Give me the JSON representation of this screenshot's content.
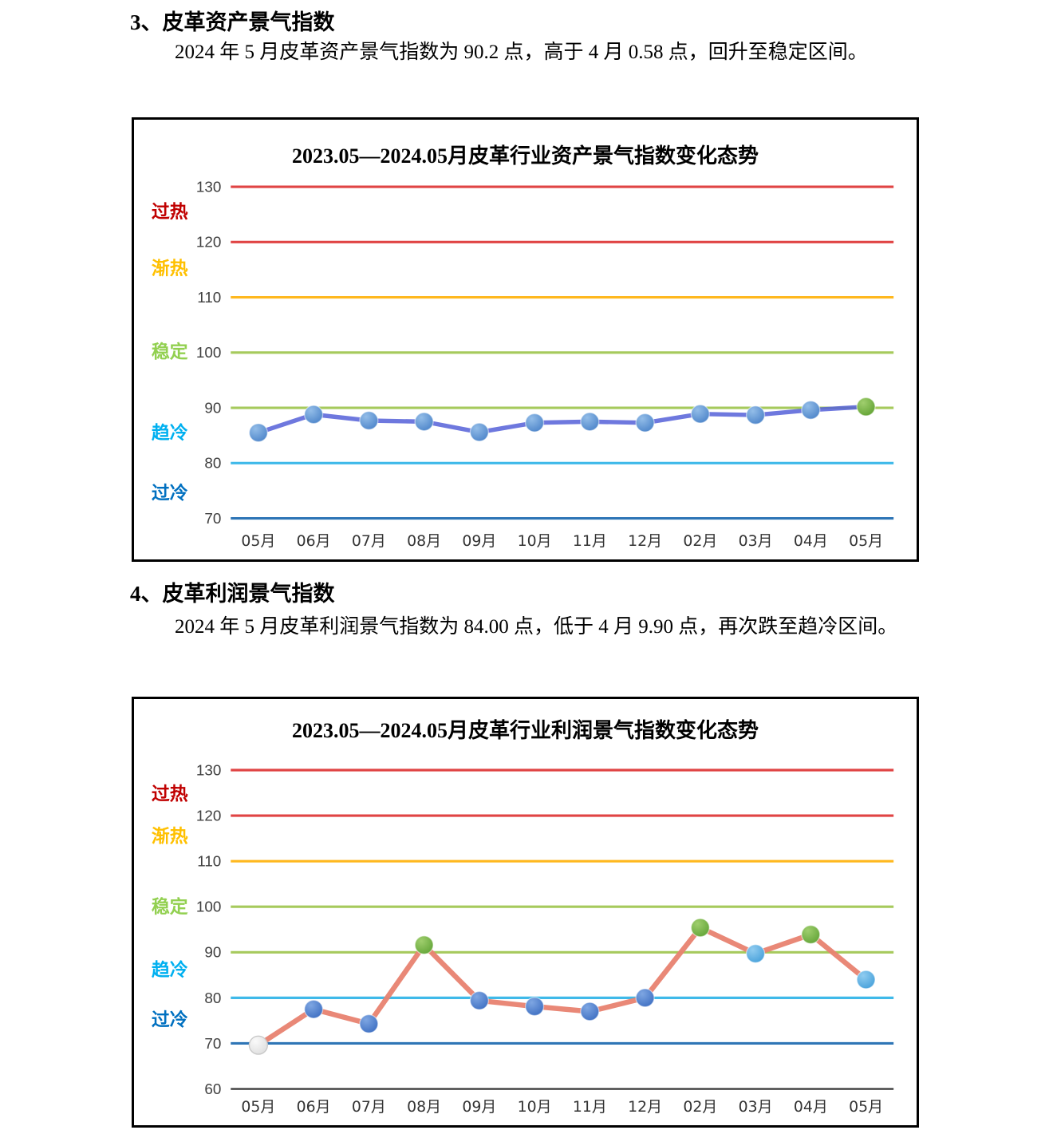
{
  "sections": [
    {
      "heading": "3、皮革资产景气指数",
      "paragraph": "2024 年 5 月皮革资产景气指数为 90.2 点，高于 4 月 0.58 点，回升至稳定区间。"
    },
    {
      "heading": "4、皮革利润景气指数",
      "paragraph": "2024 年 5 月皮革利润景气指数为 84.00 点，低于 4 月 9.90 点，再次跌至趋冷区间。"
    }
  ],
  "chart_data": [
    {
      "type": "line",
      "title": "2023.05—2024.05月皮革行业资产景气指数变化态势",
      "categories": [
        "05月",
        "06月",
        "07月",
        "08月",
        "09月",
        "10月",
        "11月",
        "12月",
        "02月",
        "03月",
        "04月",
        "05月"
      ],
      "values": [
        85.5,
        88.8,
        87.7,
        87.5,
        85.6,
        87.3,
        87.5,
        87.3,
        88.9,
        88.7,
        89.6,
        90.2
      ],
      "ylim": [
        70,
        130
      ],
      "yticks": [
        130,
        120,
        110,
        100,
        90,
        80,
        70
      ],
      "grid_colors": {
        "130": "#E04444",
        "120": "#E04444",
        "110": "#FFB81E",
        "100": "#A6CA5C",
        "90": "#A6CA5C",
        "80": "#3FB9E9",
        "70": "#2E75B6"
      },
      "zone_labels": [
        {
          "label": "过热",
          "color": "#C00000",
          "value": 125.5
        },
        {
          "label": "渐热",
          "color": "#FFC000",
          "value": 115.3
        },
        {
          "label": "稳定",
          "color": "#92D050",
          "value": 100.2
        },
        {
          "label": "趋冷",
          "color": "#00B0F0",
          "value": 85.5
        },
        {
          "label": "过冷",
          "color": "#0070C0",
          "value": 74.6
        }
      ],
      "line_color": "#5560D8",
      "marker_styles": [
        "blue",
        "blue",
        "blue",
        "blue",
        "blue",
        "blue",
        "blue",
        "blue",
        "blue",
        "blue",
        "blue",
        "green"
      ],
      "palette": {
        "blue": {
          "base": "#4C84C9",
          "light": "#93BDE8",
          "stroke": "rgba(255,255,255,0.5)"
        },
        "green": {
          "base": "#61A233",
          "light": "#A0CE6E",
          "stroke": "rgba(255,255,255,0.5)"
        }
      },
      "xlabel": "",
      "ylabel": "",
      "legend": "none",
      "grid": "horizontal-zone-lines"
    },
    {
      "type": "line",
      "title": "2023.05—2024.05月皮革行业利润景气指数变化态势",
      "categories": [
        "05月",
        "06月",
        "07月",
        "08月",
        "09月",
        "10月",
        "11月",
        "12月",
        "02月",
        "03月",
        "04月",
        "05月"
      ],
      "values": [
        69.6,
        77.5,
        74.3,
        91.6,
        79.4,
        78.1,
        77.0,
        80.0,
        95.4,
        89.7,
        93.9,
        84.0
      ],
      "ylim": [
        60,
        130
      ],
      "yticks": [
        130,
        120,
        110,
        100,
        90,
        80,
        70,
        60
      ],
      "grid_colors": {
        "130": "#E04444",
        "120": "#E04444",
        "110": "#FFB81E",
        "100": "#A6CA5C",
        "90": "#A6CA5C",
        "80": "#3FB9E9",
        "70": "#2E75B6",
        "60": "#3B3B3B"
      },
      "zone_labels": [
        {
          "label": "过热",
          "color": "#C00000",
          "value": 124.8
        },
        {
          "label": "渐热",
          "color": "#FFC000",
          "value": 115.5
        },
        {
          "label": "稳定",
          "color": "#92D050",
          "value": 100.0
        },
        {
          "label": "趋冷",
          "color": "#00B0F0",
          "value": 86.2
        },
        {
          "label": "过冷",
          "color": "#0070C0",
          "value": 75.2
        }
      ],
      "line_color": "#E88270",
      "marker_styles": [
        "gray",
        "blue",
        "blue",
        "green",
        "blue",
        "blue",
        "blue",
        "blue",
        "green",
        "skyblue",
        "green",
        "skyblue"
      ],
      "palette": {
        "gray": {
          "base": "#DEDEDE",
          "light": "#FAFAFA",
          "stroke": "#C9C9C9"
        },
        "blue": {
          "base": "#3E6FC2",
          "light": "#7EA6E2",
          "stroke": "rgba(255,255,255,0.5)"
        },
        "green": {
          "base": "#62A437",
          "light": "#9FCE6D",
          "stroke": "rgba(255,255,255,0.5)"
        },
        "skyblue": {
          "base": "#46A0DA",
          "light": "#90CCF0",
          "stroke": "rgba(255,255,255,0.5)"
        }
      },
      "xlabel": "",
      "ylabel": "",
      "legend": "none",
      "grid": "horizontal-zone-lines"
    }
  ]
}
